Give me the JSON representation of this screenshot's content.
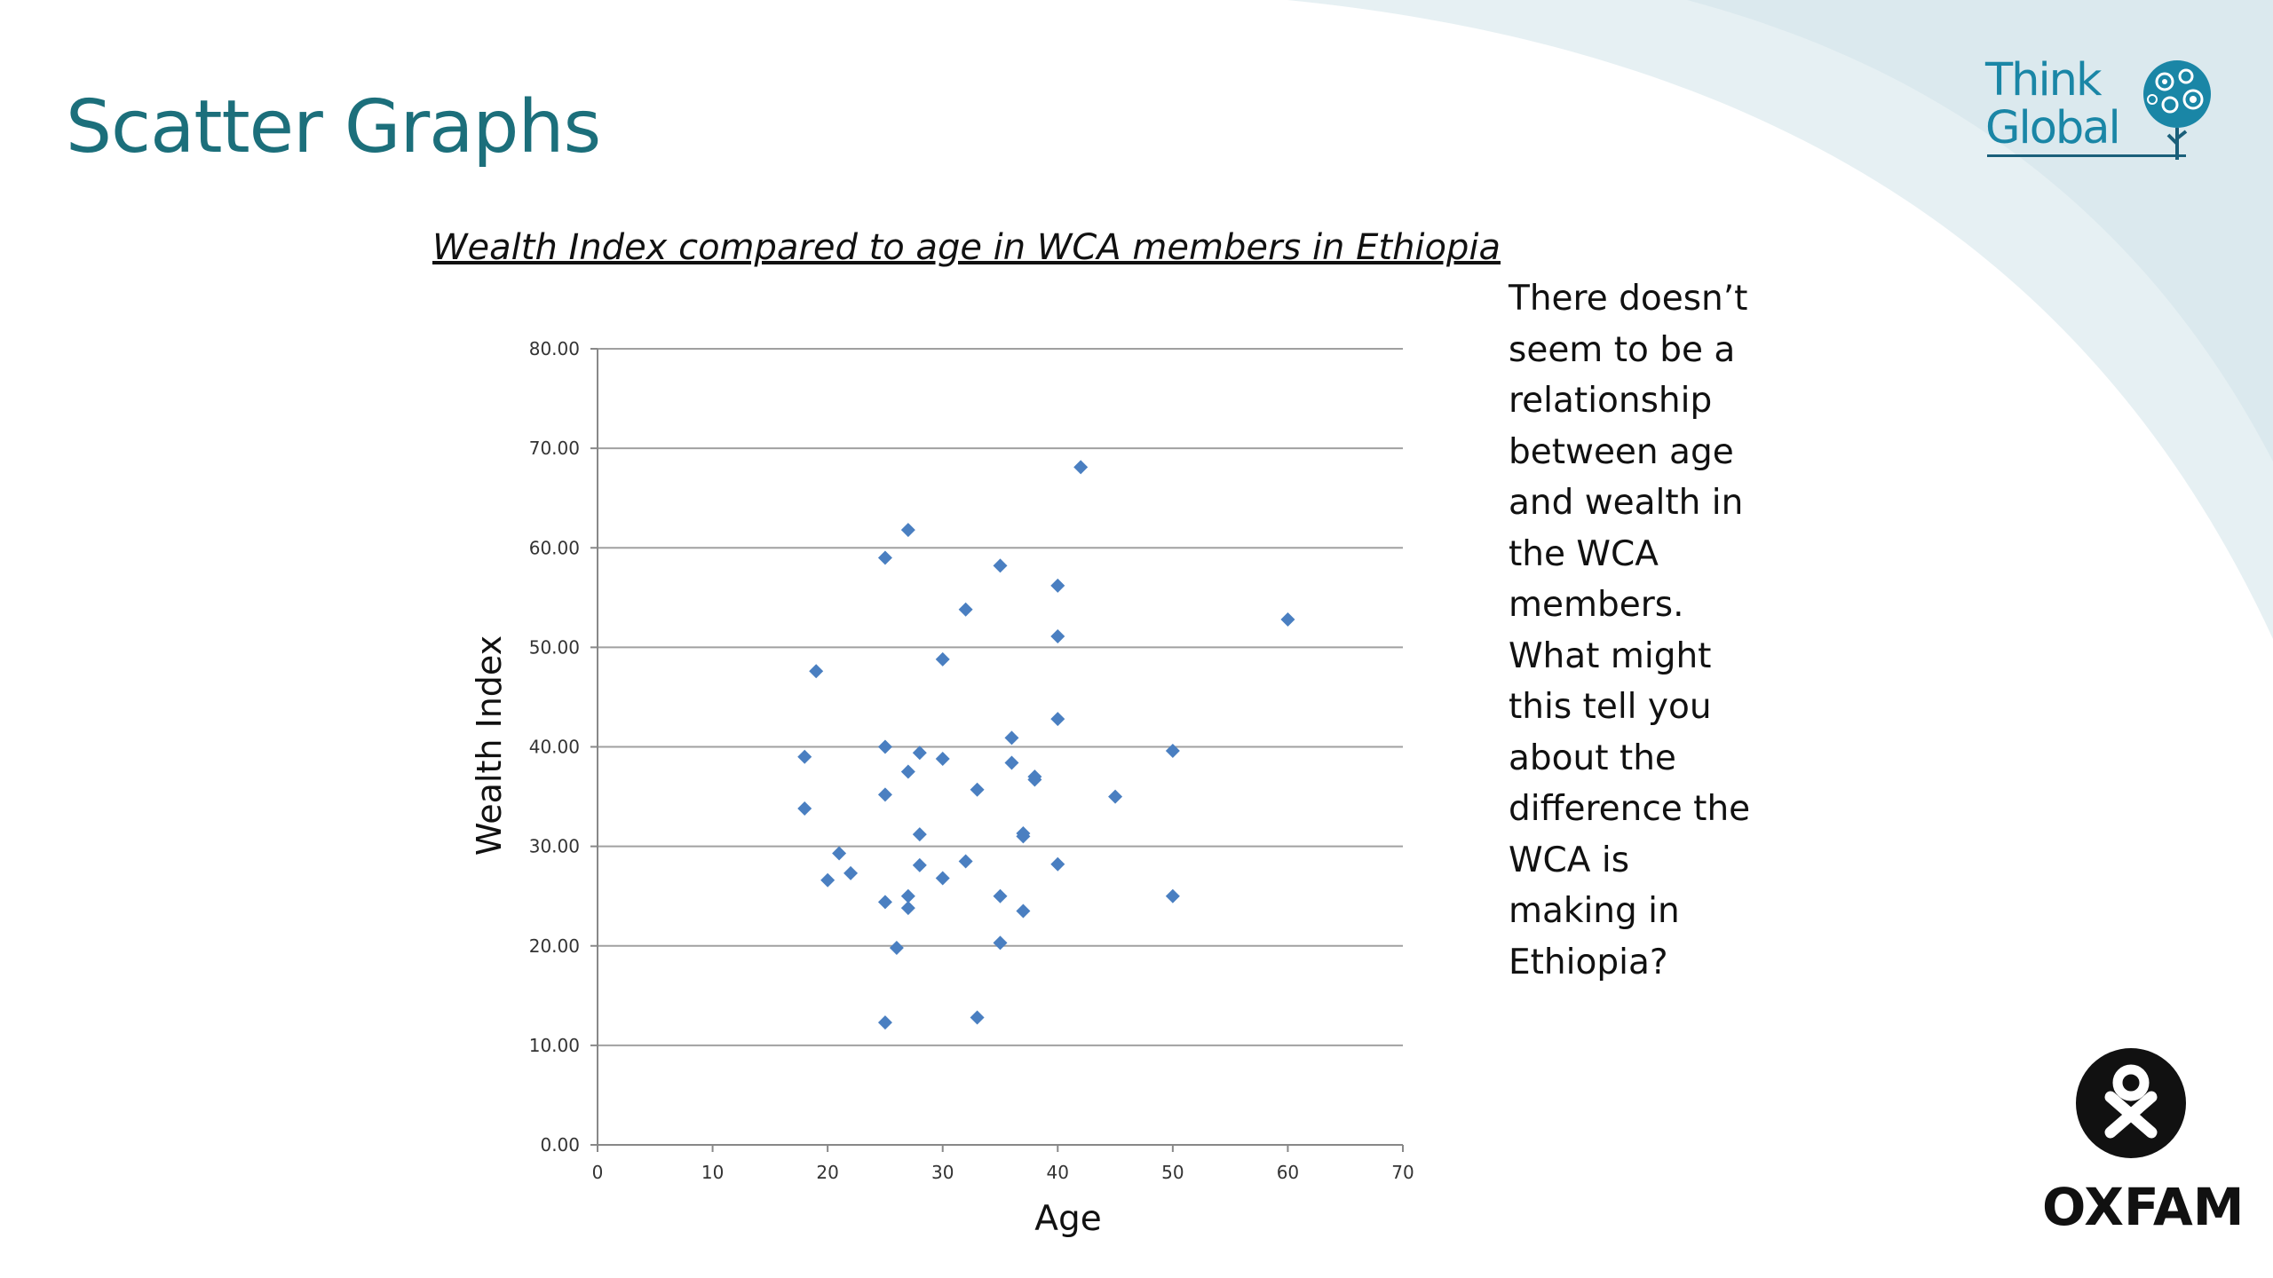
{
  "slide": {
    "title": "Scatter Graphs",
    "commentary": "There doesn’t\nseem to be a\nrelationship\nbetween age\nand wealth in\nthe WCA\nmembers.\nWhat might\nthis tell you\nabout the\ndifference the\nWCA is\nmaking in\nEthiopia?"
  },
  "logos": {
    "think_global_text": "Think\nGlobal",
    "oxfam_text": "OXFAM"
  },
  "colors": {
    "title": "#1c6f7b",
    "marker": "#4a7fc1",
    "gridline": "#a0a0a0",
    "background_arc": "#e6f0f3",
    "think_global": "#1a86a6"
  },
  "chart_data": {
    "type": "scatter",
    "title": "Wealth Index compared to age in WCA members in Ethiopia",
    "xlabel": "Age",
    "ylabel": "Wealth Index",
    "xlim": [
      0,
      70
    ],
    "ylim": [
      0,
      80
    ],
    "xticks": [
      "0",
      "10",
      "20",
      "30",
      "40",
      "50",
      "60",
      "70"
    ],
    "yticks": [
      "0.00",
      "10.00",
      "20.00",
      "30.00",
      "40.00",
      "50.00",
      "60.00",
      "70.00",
      "80.00"
    ],
    "grid": "horizontal",
    "legend": "none",
    "marker": "diamond",
    "points": [
      {
        "x": 18,
        "y": 39.0
      },
      {
        "x": 18,
        "y": 33.8
      },
      {
        "x": 19,
        "y": 47.6
      },
      {
        "x": 20,
        "y": 26.6
      },
      {
        "x": 21,
        "y": 29.3
      },
      {
        "x": 22,
        "y": 27.3
      },
      {
        "x": 25,
        "y": 59.0
      },
      {
        "x": 25,
        "y": 40.0
      },
      {
        "x": 25,
        "y": 35.2
      },
      {
        "x": 25,
        "y": 24.4
      },
      {
        "x": 25,
        "y": 12.3
      },
      {
        "x": 26,
        "y": 19.8
      },
      {
        "x": 27,
        "y": 61.8
      },
      {
        "x": 27,
        "y": 37.5
      },
      {
        "x": 27,
        "y": 25.0
      },
      {
        "x": 27,
        "y": 23.8
      },
      {
        "x": 28,
        "y": 39.4
      },
      {
        "x": 28,
        "y": 31.2
      },
      {
        "x": 28,
        "y": 28.1
      },
      {
        "x": 30,
        "y": 48.8
      },
      {
        "x": 30,
        "y": 38.8
      },
      {
        "x": 30,
        "y": 26.8
      },
      {
        "x": 32,
        "y": 53.8
      },
      {
        "x": 32,
        "y": 28.5
      },
      {
        "x": 33,
        "y": 35.7
      },
      {
        "x": 33,
        "y": 12.8
      },
      {
        "x": 35,
        "y": 58.2
      },
      {
        "x": 35,
        "y": 25.0
      },
      {
        "x": 35,
        "y": 20.3
      },
      {
        "x": 36,
        "y": 40.9
      },
      {
        "x": 36,
        "y": 38.4
      },
      {
        "x": 37,
        "y": 31.3
      },
      {
        "x": 37,
        "y": 31.0
      },
      {
        "x": 37,
        "y": 23.5
      },
      {
        "x": 38,
        "y": 37.0
      },
      {
        "x": 38,
        "y": 36.7
      },
      {
        "x": 40,
        "y": 56.2
      },
      {
        "x": 40,
        "y": 51.1
      },
      {
        "x": 40,
        "y": 42.8
      },
      {
        "x": 40,
        "y": 28.2
      },
      {
        "x": 42,
        "y": 68.1
      },
      {
        "x": 45,
        "y": 35.0
      },
      {
        "x": 50,
        "y": 39.6
      },
      {
        "x": 50,
        "y": 25.0
      },
      {
        "x": 60,
        "y": 52.8
      }
    ]
  }
}
